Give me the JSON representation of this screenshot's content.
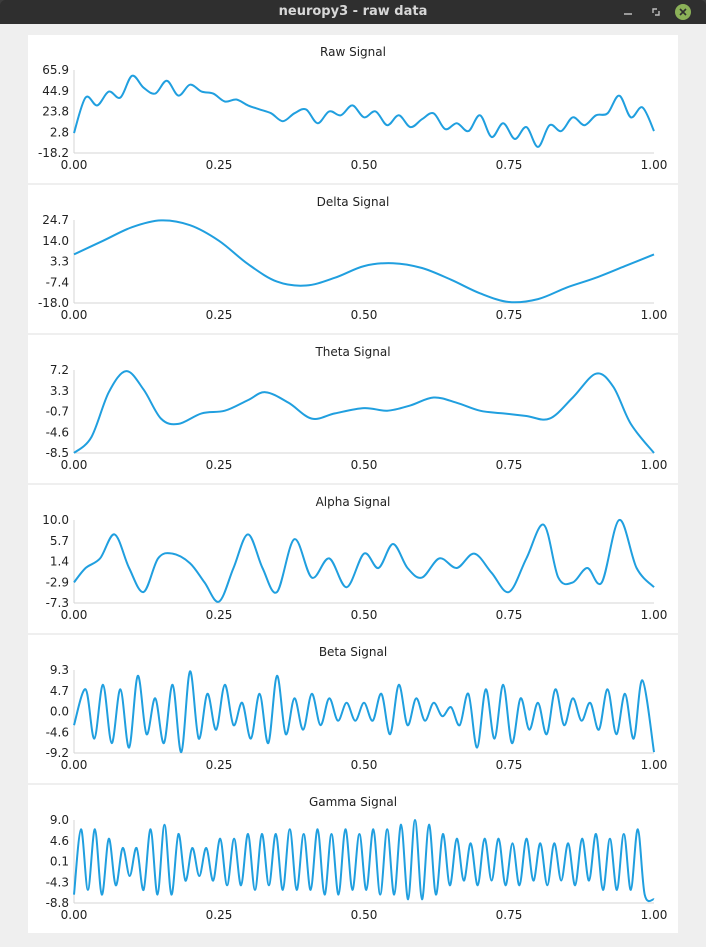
{
  "window": {
    "title": "neuropy3 - raw data",
    "accent_close": "#8bb158",
    "icons": [
      "minimize-icon",
      "maximize-icon",
      "close-icon"
    ]
  },
  "series_color": "#209fdf",
  "chart_data": [
    {
      "type": "line",
      "title": "Raw Signal",
      "xlim": [
        0,
        1
      ],
      "ylim": [
        -18.2,
        65.9
      ],
      "xticks": [
        "0.00",
        "0.25",
        "0.50",
        "0.75",
        "1.00"
      ],
      "yticks": [
        "65.9",
        "44.9",
        "23.8",
        "2.8",
        "-18.2"
      ],
      "x": [
        0.0,
        0.02,
        0.04,
        0.06,
        0.08,
        0.1,
        0.12,
        0.14,
        0.16,
        0.18,
        0.2,
        0.22,
        0.24,
        0.26,
        0.28,
        0.3,
        0.32,
        0.34,
        0.36,
        0.38,
        0.4,
        0.42,
        0.44,
        0.46,
        0.48,
        0.5,
        0.52,
        0.54,
        0.56,
        0.58,
        0.6,
        0.62,
        0.64,
        0.66,
        0.68,
        0.7,
        0.72,
        0.74,
        0.76,
        0.78,
        0.8,
        0.82,
        0.84,
        0.86,
        0.88,
        0.9,
        0.92,
        0.94,
        0.96,
        0.98,
        1.0
      ],
      "y": [
        2,
        38,
        30,
        44,
        38,
        60,
        48,
        42,
        55,
        40,
        51,
        44,
        42,
        34,
        36,
        30,
        26,
        22,
        14,
        22,
        26,
        12,
        24,
        20,
        30,
        18,
        24,
        10,
        20,
        8,
        16,
        22,
        6,
        12,
        4,
        20,
        -2,
        12,
        -4,
        8,
        -12,
        10,
        4,
        18,
        10,
        20,
        22,
        40,
        18,
        28,
        4
      ]
    },
    {
      "type": "line",
      "title": "Delta Signal",
      "xlim": [
        0,
        1
      ],
      "ylim": [
        -18.0,
        24.7
      ],
      "xticks": [
        "0.00",
        "0.25",
        "0.50",
        "0.75",
        "1.00"
      ],
      "yticks": [
        "24.7",
        "14.0",
        "3.3",
        "-7.4",
        "-18.0"
      ],
      "x": [
        0.0,
        0.05,
        0.1,
        0.15,
        0.2,
        0.25,
        0.3,
        0.35,
        0.4,
        0.45,
        0.5,
        0.55,
        0.6,
        0.65,
        0.7,
        0.75,
        0.8,
        0.85,
        0.9,
        0.95,
        1.0
      ],
      "y": [
        7,
        14,
        21,
        24.5,
        22,
        14,
        2,
        -7,
        -9,
        -5,
        1,
        2.5,
        0,
        -6,
        -13,
        -17.5,
        -16,
        -10,
        -5,
        1,
        7
      ]
    },
    {
      "type": "line",
      "title": "Theta Signal",
      "xlim": [
        0,
        1
      ],
      "ylim": [
        -8.5,
        7.2
      ],
      "xticks": [
        "0.00",
        "0.25",
        "0.50",
        "0.75",
        "1.00"
      ],
      "yticks": [
        "7.2",
        "3.3",
        "-0.7",
        "-4.6",
        "-8.5"
      ],
      "x": [
        0.0,
        0.03,
        0.06,
        0.09,
        0.12,
        0.15,
        0.18,
        0.22,
        0.26,
        0.3,
        0.33,
        0.37,
        0.41,
        0.45,
        0.5,
        0.54,
        0.58,
        0.62,
        0.66,
        0.7,
        0.74,
        0.78,
        0.82,
        0.86,
        0.9,
        0.93,
        0.96,
        1.0
      ],
      "y": [
        -8.5,
        -5.5,
        3,
        7,
        3.5,
        -2,
        -3,
        -1,
        -0.5,
        1.5,
        3,
        1,
        -2,
        -1,
        0,
        -0.5,
        0.5,
        2,
        1,
        -0.5,
        -1,
        -1.5,
        -2,
        2,
        6.5,
        4,
        -3,
        -8.5
      ]
    },
    {
      "type": "line",
      "title": "Alpha Signal",
      "xlim": [
        0,
        1
      ],
      "ylim": [
        -7.3,
        10.0
      ],
      "xticks": [
        "0.00",
        "0.25",
        "0.50",
        "0.75",
        "1.00"
      ],
      "yticks": [
        "10.0",
        "5.7",
        "1.4",
        "-2.9",
        "-7.3"
      ],
      "x": [
        0.0,
        0.02,
        0.045,
        0.07,
        0.095,
        0.12,
        0.145,
        0.17,
        0.2,
        0.225,
        0.25,
        0.275,
        0.3,
        0.325,
        0.35,
        0.38,
        0.41,
        0.44,
        0.47,
        0.5,
        0.525,
        0.55,
        0.575,
        0.6,
        0.63,
        0.66,
        0.69,
        0.72,
        0.75,
        0.78,
        0.81,
        0.835,
        0.86,
        0.885,
        0.91,
        0.94,
        0.97,
        1.0
      ],
      "y": [
        -3,
        0,
        2,
        7,
        0,
        -5,
        2,
        3,
        1,
        -3,
        -7,
        0,
        7,
        0,
        -5,
        6,
        -2,
        2,
        -4,
        3,
        0,
        5,
        0,
        -2,
        2,
        0,
        3,
        -1,
        -5,
        2,
        9,
        -2,
        -3,
        0,
        -3,
        10,
        0,
        -4
      ]
    },
    {
      "type": "line",
      "title": "Beta Signal",
      "xlim": [
        0,
        1
      ],
      "ylim": [
        -9.2,
        9.3
      ],
      "xticks": [
        "0.00",
        "0.25",
        "0.50",
        "0.75",
        "1.00"
      ],
      "yticks": [
        "9.3",
        "4.7",
        "0.0",
        "-4.6",
        "-9.2"
      ],
      "x": [
        0.0,
        0.02,
        0.035,
        0.05,
        0.065,
        0.08,
        0.095,
        0.11,
        0.125,
        0.14,
        0.155,
        0.17,
        0.185,
        0.2,
        0.215,
        0.23,
        0.245,
        0.26,
        0.275,
        0.29,
        0.305,
        0.32,
        0.335,
        0.35,
        0.365,
        0.38,
        0.395,
        0.41,
        0.425,
        0.44,
        0.455,
        0.47,
        0.485,
        0.5,
        0.515,
        0.53,
        0.545,
        0.56,
        0.575,
        0.59,
        0.605,
        0.62,
        0.635,
        0.65,
        0.665,
        0.68,
        0.695,
        0.71,
        0.725,
        0.74,
        0.755,
        0.77,
        0.785,
        0.8,
        0.815,
        0.83,
        0.845,
        0.86,
        0.875,
        0.89,
        0.905,
        0.92,
        0.935,
        0.95,
        0.965,
        0.98,
        1.0
      ],
      "y": [
        -3,
        5,
        -6,
        6,
        -7,
        5,
        -8,
        8,
        -5,
        3,
        -7,
        6,
        -9,
        9,
        -6,
        4,
        -4,
        6,
        -3,
        2,
        -6,
        4,
        -7,
        8,
        -5,
        3,
        -4,
        4,
        -3,
        3,
        -2,
        2,
        -2,
        2,
        -2,
        4,
        -5,
        6,
        -3,
        3,
        -2,
        2,
        -1,
        1,
        -3,
        4,
        -8,
        5,
        -6,
        6,
        -7,
        3,
        -4,
        2,
        -5,
        5,
        -3,
        3,
        -2,
        2,
        -4,
        5,
        -5,
        4,
        -6,
        7,
        -9
      ]
    },
    {
      "type": "line",
      "title": "Gamma Signal",
      "xlim": [
        0,
        1
      ],
      "ylim": [
        -8.8,
        9.0
      ],
      "xticks": [
        "0.00",
        "0.25",
        "0.50",
        "0.75",
        "1.00"
      ],
      "yticks": [
        "9.0",
        "4.6",
        "0.1",
        "-4.3",
        "-8.8"
      ],
      "x": [
        0.0,
        0.012,
        0.024,
        0.036,
        0.048,
        0.06,
        0.072,
        0.084,
        0.096,
        0.108,
        0.12,
        0.132,
        0.144,
        0.156,
        0.168,
        0.18,
        0.192,
        0.204,
        0.216,
        0.228,
        0.24,
        0.252,
        0.264,
        0.276,
        0.288,
        0.3,
        0.312,
        0.324,
        0.336,
        0.348,
        0.36,
        0.372,
        0.384,
        0.396,
        0.408,
        0.42,
        0.432,
        0.444,
        0.456,
        0.468,
        0.48,
        0.492,
        0.504,
        0.516,
        0.528,
        0.54,
        0.552,
        0.564,
        0.576,
        0.588,
        0.6,
        0.612,
        0.624,
        0.636,
        0.648,
        0.66,
        0.672,
        0.684,
        0.696,
        0.708,
        0.72,
        0.732,
        0.744,
        0.756,
        0.768,
        0.78,
        0.792,
        0.804,
        0.816,
        0.828,
        0.84,
        0.852,
        0.864,
        0.876,
        0.888,
        0.9,
        0.912,
        0.924,
        0.936,
        0.948,
        0.96,
        0.972,
        0.984,
        1.0
      ],
      "y": [
        -7,
        7,
        -6,
        7,
        -7,
        5,
        -5,
        3,
        -3,
        3,
        -6,
        7,
        -7,
        8,
        -7,
        6,
        -4,
        3,
        -3,
        3,
        -4,
        5,
        -5,
        5,
        -5,
        6,
        -6,
        6,
        -5,
        6,
        -6,
        7,
        -6,
        6,
        -6,
        7,
        -7,
        6,
        -7,
        7,
        -6,
        6,
        -6,
        7,
        -7,
        7,
        -7,
        8,
        -8,
        9,
        -8,
        8,
        -7,
        6,
        -5,
        5,
        -4,
        4,
        -5,
        5,
        -4,
        5,
        -5,
        4,
        -5,
        5,
        -4,
        4,
        -5,
        4,
        -4,
        4,
        -5,
        5,
        -4,
        6,
        -6,
        5,
        -6,
        6,
        -6,
        7,
        -7,
        -8
      ]
    }
  ]
}
